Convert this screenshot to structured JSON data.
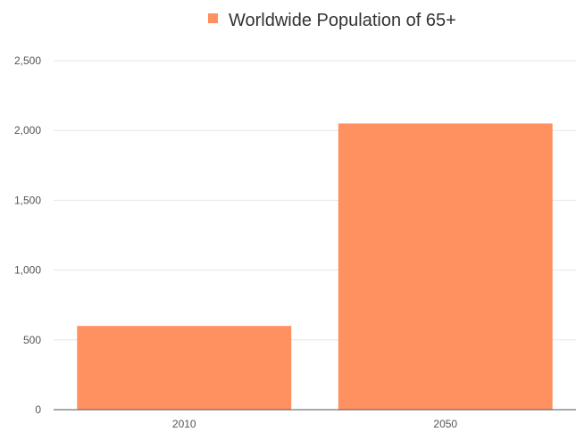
{
  "chart_data": {
    "type": "bar",
    "categories": [
      "2010",
      "2050"
    ],
    "series": [
      {
        "name": "Worldwide Population of 65+",
        "values": [
          600,
          2050
        ],
        "color": "#ff9060"
      }
    ],
    "ylim": [
      0,
      2500
    ],
    "yticks": [
      "0",
      "500",
      "1,000",
      "1,500",
      "2,000",
      "2,500"
    ],
    "ytick_values": [
      0,
      500,
      1000,
      1500,
      2000,
      2500
    ],
    "grid": true,
    "legend_position": "top"
  }
}
